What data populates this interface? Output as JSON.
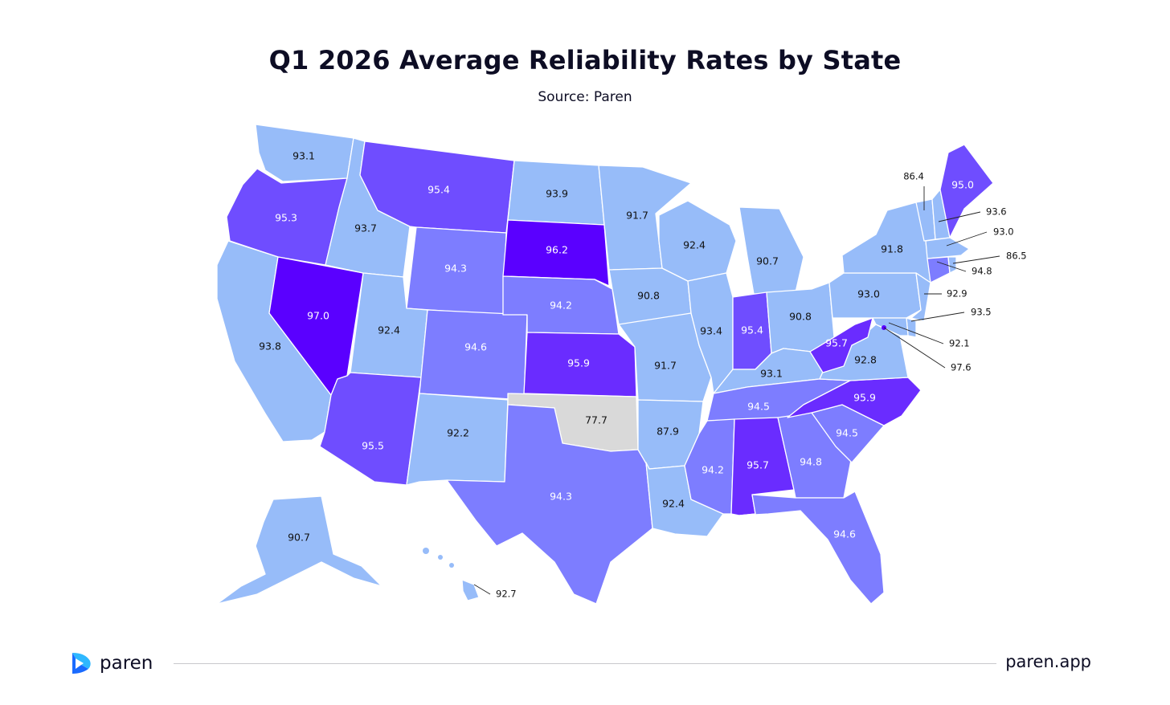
{
  "title": "Q1 2026 Average Reliability Rates by State",
  "subtitle": "Source: Paren",
  "footer": {
    "brand": "paren",
    "site": "paren.app"
  },
  "colors": {
    "light_blue": "#97bcf9",
    "periwinkle": "#7d7dff",
    "medium_purple": "#6f4dff",
    "violet": "#6a2cff",
    "deep_violet": "#5a00ff",
    "no_data_gray": "#d9d9d9",
    "brand_blue": "#1e90ff"
  },
  "chart_data": {
    "type": "choropleth",
    "title": "Q1 2026 Average Reliability Rates by State",
    "subtitle": "Source: Paren",
    "values": [
      {
        "state": "WA",
        "value": 93.1
      },
      {
        "state": "OR",
        "value": 95.3
      },
      {
        "state": "CA",
        "value": 93.8
      },
      {
        "state": "NV",
        "value": 97.0
      },
      {
        "state": "ID",
        "value": 93.7
      },
      {
        "state": "MT",
        "value": 95.4
      },
      {
        "state": "WY",
        "value": 94.3
      },
      {
        "state": "UT",
        "value": 92.4
      },
      {
        "state": "AZ",
        "value": 95.5
      },
      {
        "state": "CO",
        "value": 94.6
      },
      {
        "state": "NM",
        "value": 92.2
      },
      {
        "state": "ND",
        "value": 93.9
      },
      {
        "state": "SD",
        "value": 96.2
      },
      {
        "state": "NE",
        "value": 94.2
      },
      {
        "state": "KS",
        "value": 95.9
      },
      {
        "state": "OK",
        "value": 77.7
      },
      {
        "state": "TX",
        "value": 94.3
      },
      {
        "state": "MN",
        "value": 91.7
      },
      {
        "state": "IA",
        "value": 90.8
      },
      {
        "state": "MO",
        "value": 91.7
      },
      {
        "state": "AR",
        "value": 87.9
      },
      {
        "state": "LA",
        "value": 92.4
      },
      {
        "state": "WI",
        "value": 92.4
      },
      {
        "state": "IL",
        "value": 93.4
      },
      {
        "state": "MI",
        "value": 90.7
      },
      {
        "state": "IN",
        "value": 95.4
      },
      {
        "state": "OH",
        "value": 90.8
      },
      {
        "state": "KY",
        "value": 93.1
      },
      {
        "state": "TN",
        "value": 94.5
      },
      {
        "state": "MS",
        "value": 94.2
      },
      {
        "state": "AL",
        "value": 95.7
      },
      {
        "state": "GA",
        "value": 94.8
      },
      {
        "state": "FL",
        "value": 94.6
      },
      {
        "state": "SC",
        "value": 94.5
      },
      {
        "state": "NC",
        "value": 95.9
      },
      {
        "state": "VA",
        "value": 92.8
      },
      {
        "state": "WV",
        "value": 95.7
      },
      {
        "state": "PA",
        "value": 93.0
      },
      {
        "state": "NY",
        "value": 91.8
      },
      {
        "state": "ME",
        "value": 95.0
      },
      {
        "state": "VT",
        "value": 86.4
      },
      {
        "state": "NH",
        "value": 93.6
      },
      {
        "state": "MA",
        "value": 93.0
      },
      {
        "state": "RI",
        "value": 86.5
      },
      {
        "state": "CT",
        "value": 94.8
      },
      {
        "state": "NJ",
        "value": 92.9
      },
      {
        "state": "DE",
        "value": 93.5
      },
      {
        "state": "MD",
        "value": 92.1
      },
      {
        "state": "DC",
        "value": 97.6
      },
      {
        "state": "AK",
        "value": 90.7
      },
      {
        "state": "HI",
        "value": 92.7
      }
    ]
  }
}
